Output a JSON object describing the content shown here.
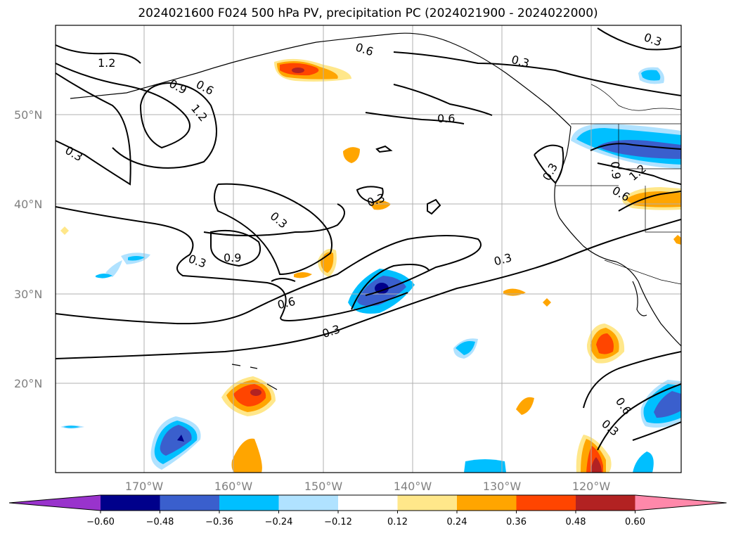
{
  "title": "2024021600 F024 500 hPa PV, precipitation PC (2024021900 - 2024022000)",
  "map": {
    "lat_ticks": [
      "50°N",
      "40°N",
      "30°N",
      "20°N"
    ],
    "lon_ticks": [
      "170°W",
      "160°W",
      "150°W",
      "140°W",
      "130°W",
      "120°W"
    ],
    "contour_labels": [
      "1.2",
      "0.9",
      "0.6",
      "0.3",
      "1.2",
      "0.3",
      "0.3",
      "0.9",
      "0.3",
      "0.6",
      "0.3",
      "0.6",
      "0.6",
      "0.3",
      "0.3",
      "0.3",
      "0.3",
      "0.9",
      "1.2",
      "0.6",
      "0.6",
      "0.3",
      "0.3"
    ],
    "colors": {
      "land_lines": "#000000",
      "grid": "#b0b0b0",
      "frame": "#000000"
    }
  },
  "colorbar": {
    "levels": [
      "−0.60",
      "−0.48",
      "−0.36",
      "−0.24",
      "−0.12",
      "0.12",
      "0.24",
      "0.36",
      "0.48",
      "0.60"
    ],
    "colors": [
      "#9933cc",
      "#00008b",
      "#3a5fcd",
      "#00bfff",
      "#b0e2ff",
      "#ffffff",
      "#ffe78a",
      "#ffa500",
      "#ff4500",
      "#b22222",
      "#ff88aa"
    ]
  }
}
